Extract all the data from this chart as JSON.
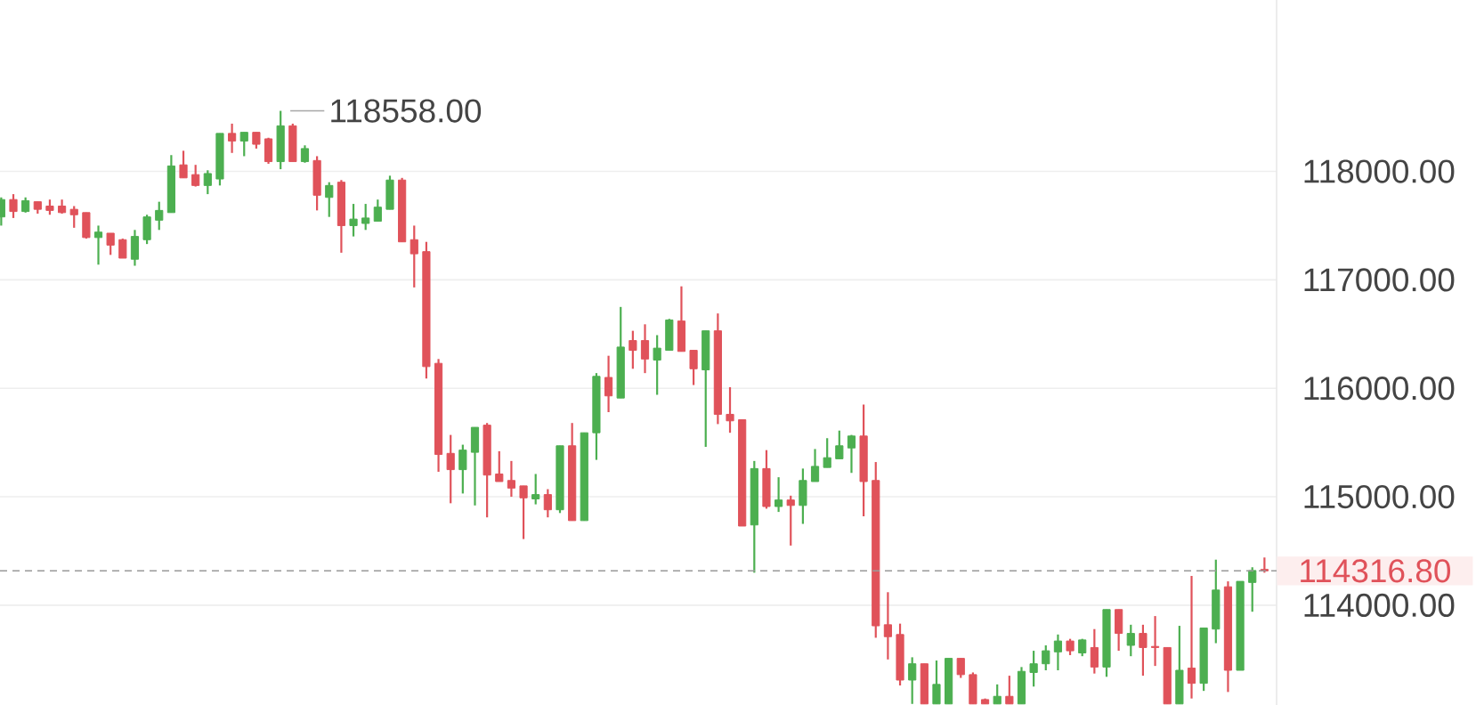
{
  "chart_data": {
    "type": "candlestick",
    "categories": [
      null,
      null,
      null,
      null,
      null,
      null,
      null,
      null,
      null,
      null,
      null,
      null,
      null,
      null,
      null,
      null,
      null,
      null,
      null,
      null,
      null,
      null,
      null,
      null,
      null,
      null,
      null,
      null,
      null,
      null,
      null,
      null,
      null,
      null,
      null,
      null,
      null,
      null,
      null,
      null,
      null,
      null,
      null,
      null,
      null,
      null,
      null,
      null,
      null,
      null,
      null,
      null,
      null,
      null,
      null,
      null,
      null,
      null,
      null,
      null,
      null,
      null,
      null,
      null,
      null,
      null,
      null,
      null,
      null,
      null,
      null,
      null,
      null,
      null,
      null,
      null,
      null,
      null,
      null,
      null,
      null,
      null,
      null,
      null,
      null,
      null,
      null,
      null,
      null,
      null,
      null,
      null,
      null,
      null,
      null,
      null,
      null,
      null,
      null,
      null,
      null,
      null,
      null,
      null,
      null
    ],
    "ohlc": [
      [
        117580,
        117760,
        117500,
        117740
      ],
      [
        117740,
        117790,
        117570,
        117630
      ],
      [
        117630,
        117760,
        117620,
        117730
      ],
      [
        117720,
        117720,
        117610,
        117650
      ],
      [
        117680,
        117740,
        117600,
        117640
      ],
      [
        117680,
        117740,
        117610,
        117620
      ],
      [
        117650,
        117680,
        117480,
        117600
      ],
      [
        117620,
        117620,
        117380,
        117390
      ],
      [
        117390,
        117500,
        117140,
        117440
      ],
      [
        117430,
        117430,
        117230,
        117320
      ],
      [
        117370,
        117380,
        117200,
        117200
      ],
      [
        117190,
        117460,
        117130,
        117400
      ],
      [
        117370,
        117600,
        117330,
        117580
      ],
      [
        117550,
        117720,
        117460,
        117640
      ],
      [
        117620,
        118150,
        117620,
        118050
      ],
      [
        118060,
        118190,
        117940,
        117940
      ],
      [
        117970,
        118060,
        117860,
        117870
      ],
      [
        117870,
        118010,
        117790,
        117980
      ],
      [
        117930,
        118350,
        117870,
        118350
      ],
      [
        118350,
        118440,
        118170,
        118280
      ],
      [
        118280,
        118360,
        118140,
        118360
      ],
      [
        118360,
        118360,
        118210,
        118250
      ],
      [
        118300,
        118310,
        118070,
        118090
      ],
      [
        118090,
        118558,
        118020,
        118420
      ],
      [
        118420,
        118440,
        118090,
        118090
      ],
      [
        118090,
        118240,
        118080,
        118210
      ],
      [
        118100,
        118140,
        117640,
        117780
      ],
      [
        117760,
        117900,
        117580,
        117870
      ],
      [
        117900,
        117920,
        117250,
        117500
      ],
      [
        117500,
        117700,
        117400,
        117560
      ],
      [
        117520,
        117700,
        117460,
        117570
      ],
      [
        117540,
        117740,
        117540,
        117670
      ],
      [
        117650,
        117960,
        117650,
        117920
      ],
      [
        117920,
        117940,
        117350,
        117350
      ],
      [
        117370,
        117500,
        116930,
        117240
      ],
      [
        117260,
        117350,
        116090,
        116200
      ],
      [
        116230,
        116270,
        115230,
        115390
      ],
      [
        115400,
        115570,
        114940,
        115250
      ],
      [
        115250,
        115480,
        115030,
        115430
      ],
      [
        115410,
        115640,
        114920,
        115640
      ],
      [
        115660,
        115680,
        114810,
        115200
      ],
      [
        115210,
        115420,
        115140,
        115140
      ],
      [
        115150,
        115330,
        115000,
        115080
      ],
      [
        115100,
        115100,
        114610,
        114990
      ],
      [
        114980,
        115210,
        114930,
        115020
      ],
      [
        115020,
        115070,
        114810,
        114880
      ],
      [
        114880,
        115470,
        114850,
        115470
      ],
      [
        115470,
        115680,
        114780,
        114780
      ],
      [
        114780,
        115590,
        114780,
        115590
      ],
      [
        115590,
        116140,
        115340,
        116110
      ],
      [
        116100,
        116300,
        115780,
        115930
      ],
      [
        115910,
        116750,
        115910,
        116380
      ],
      [
        116440,
        116530,
        116180,
        116350
      ],
      [
        116440,
        116590,
        116140,
        116270
      ],
      [
        116260,
        116490,
        115940,
        116370
      ],
      [
        116350,
        116640,
        116350,
        116630
      ],
      [
        116620,
        116940,
        116340,
        116340
      ],
      [
        116350,
        116350,
        116030,
        116180
      ],
      [
        116170,
        116530,
        115460,
        116530
      ],
      [
        116530,
        116690,
        115670,
        115760
      ],
      [
        115760,
        116010,
        115590,
        115700
      ],
      [
        115710,
        115710,
        114730,
        114730
      ],
      [
        114740,
        115330,
        114300,
        115260
      ],
      [
        115260,
        115430,
        114890,
        114910
      ],
      [
        114910,
        115180,
        114860,
        114970
      ],
      [
        114970,
        115010,
        114550,
        114920
      ],
      [
        114920,
        115260,
        114750,
        115150
      ],
      [
        115140,
        115440,
        115140,
        115280
      ],
      [
        115270,
        115540,
        115270,
        115360
      ],
      [
        115350,
        115610,
        115350,
        115470
      ],
      [
        115450,
        115570,
        115220,
        115560
      ],
      [
        115560,
        115850,
        114820,
        115140
      ],
      [
        115150,
        115320,
        113700,
        113810
      ],
      [
        113820,
        114120,
        113500,
        113710
      ],
      [
        113730,
        113830,
        113260,
        113310
      ],
      [
        113310,
        113520,
        113090,
        113460
      ],
      [
        113460,
        113460,
        113090,
        113090
      ],
      [
        113090,
        113490,
        113090,
        113270
      ],
      [
        113090,
        113510,
        113090,
        113510
      ],
      [
        113510,
        113510,
        113330,
        113360
      ],
      [
        113360,
        113380,
        113090,
        113090
      ],
      [
        113130,
        113140,
        113090,
        113090
      ],
      [
        113090,
        113270,
        113090,
        113160
      ],
      [
        113160,
        113350,
        113090,
        113090
      ],
      [
        113090,
        113430,
        113090,
        113390
      ],
      [
        113380,
        113580,
        113250,
        113460
      ],
      [
        113460,
        113630,
        113400,
        113580
      ],
      [
        113570,
        113730,
        113400,
        113670
      ],
      [
        113670,
        113690,
        113540,
        113580
      ],
      [
        113560,
        113690,
        113530,
        113680
      ],
      [
        113610,
        113780,
        113370,
        113430
      ],
      [
        113430,
        113960,
        113340,
        113960
      ],
      [
        113960,
        113960,
        113580,
        113740
      ],
      [
        113630,
        113820,
        113530,
        113740
      ],
      [
        113740,
        113820,
        113350,
        113610
      ],
      [
        113620,
        113900,
        113440,
        113610
      ],
      [
        113610,
        113610,
        113090,
        113090
      ],
      [
        113090,
        113810,
        113090,
        113400
      ],
      [
        113420,
        114270,
        113140,
        113280
      ],
      [
        113280,
        113790,
        113210,
        113790
      ],
      [
        113780,
        114420,
        113650,
        114140
      ],
      [
        114170,
        114220,
        113200,
        113400
      ],
      [
        113400,
        114220,
        113400,
        114220
      ],
      [
        114210,
        114350,
        113940,
        114320
      ],
      [
        114330,
        114440,
        114300,
        114316.8
      ]
    ],
    "colors": [
      "#4caf50",
      "#e0525a",
      "#4caf50",
      "#e0525a",
      "#e0525a",
      "#e0525a",
      "#e0525a",
      "#e0525a",
      "#4caf50",
      "#e0525a",
      "#e0525a",
      "#4caf50",
      "#4caf50",
      "#4caf50",
      "#4caf50",
      "#e0525a",
      "#e0525a",
      "#4caf50",
      "#4caf50",
      "#e0525a",
      "#4caf50",
      "#e0525a",
      "#e0525a",
      "#4caf50",
      "#e0525a",
      "#4caf50",
      "#e0525a",
      "#4caf50",
      "#e0525a",
      "#4caf50",
      "#4caf50",
      "#4caf50",
      "#4caf50",
      "#e0525a",
      "#e0525a",
      "#e0525a",
      "#e0525a",
      "#e0525a",
      "#4caf50",
      "#4caf50",
      "#e0525a",
      "#e0525a",
      "#e0525a",
      "#e0525a",
      "#4caf50",
      "#e0525a",
      "#4caf50",
      "#e0525a",
      "#4caf50",
      "#4caf50",
      "#e0525a",
      "#4caf50",
      "#e0525a",
      "#e0525a",
      "#4caf50",
      "#4caf50",
      "#e0525a",
      "#e0525a",
      "#4caf50",
      "#e0525a",
      "#e0525a",
      "#e0525a",
      "#4caf50",
      "#e0525a",
      "#4caf50",
      "#e0525a",
      "#4caf50",
      "#4caf50",
      "#4caf50",
      "#4caf50",
      "#4caf50",
      "#e0525a",
      "#e0525a",
      "#e0525a",
      "#e0525a",
      "#4caf50",
      "#e0525a",
      "#4caf50",
      "#4caf50",
      "#e0525a",
      "#e0525a",
      "#e0525a",
      "#4caf50",
      "#e0525a",
      "#4caf50",
      "#4caf50",
      "#4caf50",
      "#4caf50",
      "#e0525a",
      "#4caf50",
      "#e0525a",
      "#4caf50",
      "#e0525a",
      "#4caf50",
      "#e0525a",
      "#e0525a",
      "#e0525a",
      "#4caf50",
      "#e0525a",
      "#4caf50",
      "#4caf50",
      "#e0525a",
      "#4caf50",
      "#4caf50",
      "#e0525a"
    ],
    "ylim": [
      113080,
      119580
    ],
    "yticks": [
      {
        "value": 114000,
        "label": "114000.00"
      },
      {
        "value": 115000,
        "label": "115000.00"
      },
      {
        "value": 116000,
        "label": "116000.00"
      },
      {
        "value": 117000,
        "label": "117000.00"
      },
      {
        "value": 118000,
        "label": "118000.00"
      }
    ],
    "grid": "y",
    "ref_lines": [
      {
        "axis": "y",
        "value": 114316.8,
        "label": "114316.80",
        "color": "#999999",
        "line_style": "dashed"
      }
    ],
    "annotations": [
      "118558.00"
    ]
  }
}
